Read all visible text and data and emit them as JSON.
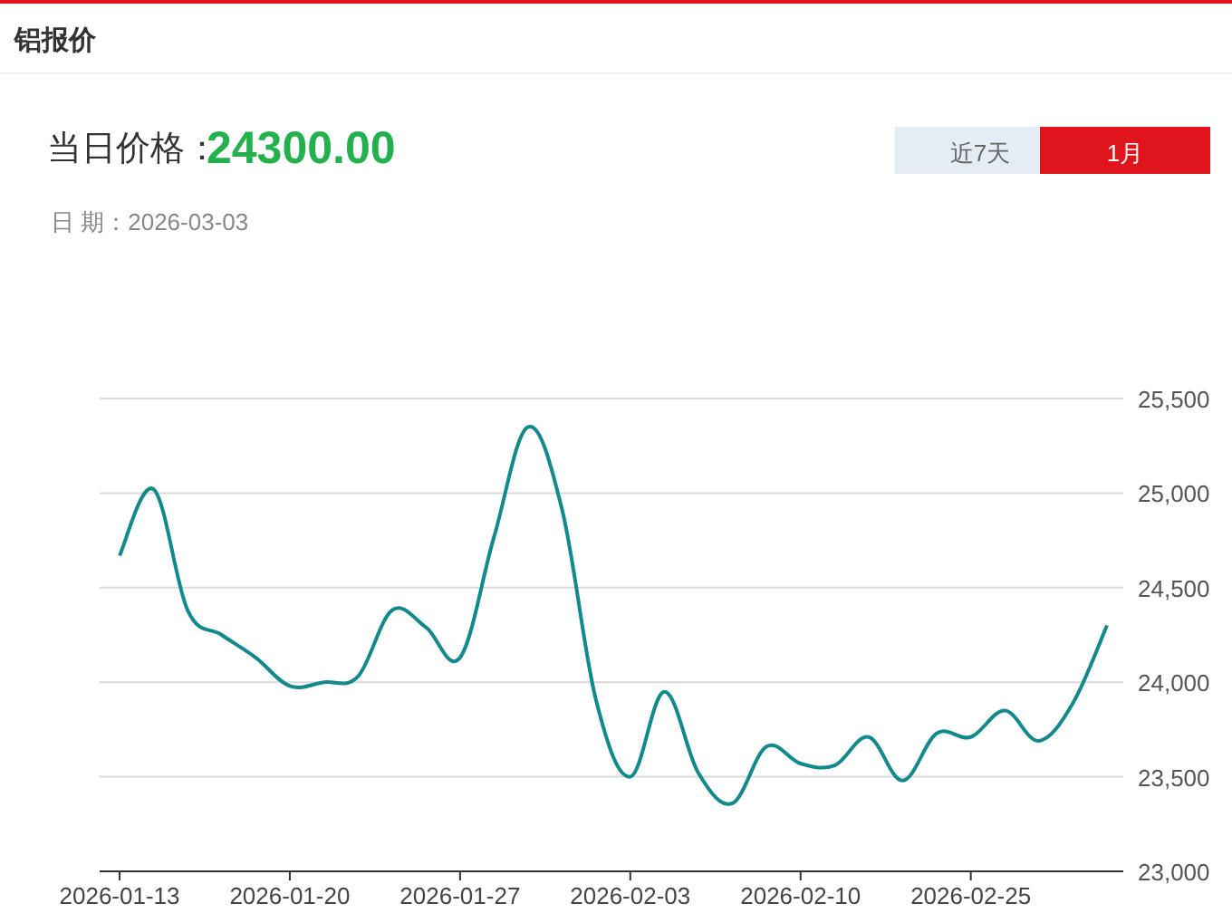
{
  "chart_data": {
    "type": "line",
    "title": "铝报价",
    "annotations": [
      "当日价格：",
      "24300.00",
      "日 期：2026-03-03",
      "近7天",
      "1月"
    ],
    "categories": [
      "2026-01-13",
      null,
      null,
      null,
      null,
      "2026-01-20",
      null,
      null,
      null,
      null,
      "2026-01-27",
      null,
      null,
      null,
      null,
      "2026-02-03",
      null,
      null,
      null,
      null,
      "2026-02-10",
      null,
      null,
      null,
      null,
      "2026-02-25",
      null,
      null,
      null,
      null
    ],
    "series": [
      {
        "color": "#12898b",
        "values": [
          24670,
          25020,
          24380,
          24250,
          24130,
          23980,
          24000,
          24030,
          24380,
          24290,
          24130,
          24770,
          25350,
          24910,
          23900,
          23500,
          23950,
          23520,
          23360,
          23660,
          23570,
          23560,
          23710,
          23480,
          23730,
          23710,
          23850,
          23690,
          23890,
          24300
        ]
      }
    ],
    "ylim": [
      23000,
      25500
    ],
    "yticks": [
      {
        "value": 23000,
        "label": "23,000"
      },
      {
        "value": 23500,
        "label": "23,500"
      },
      {
        "value": 24000,
        "label": "24,000"
      },
      {
        "value": 24500,
        "label": "24,500"
      },
      {
        "value": 25000,
        "label": "25,000"
      },
      {
        "value": 25500,
        "label": "25,500"
      }
    ],
    "grid": "y",
    "marker": "none",
    "line_style": "solid"
  }
}
